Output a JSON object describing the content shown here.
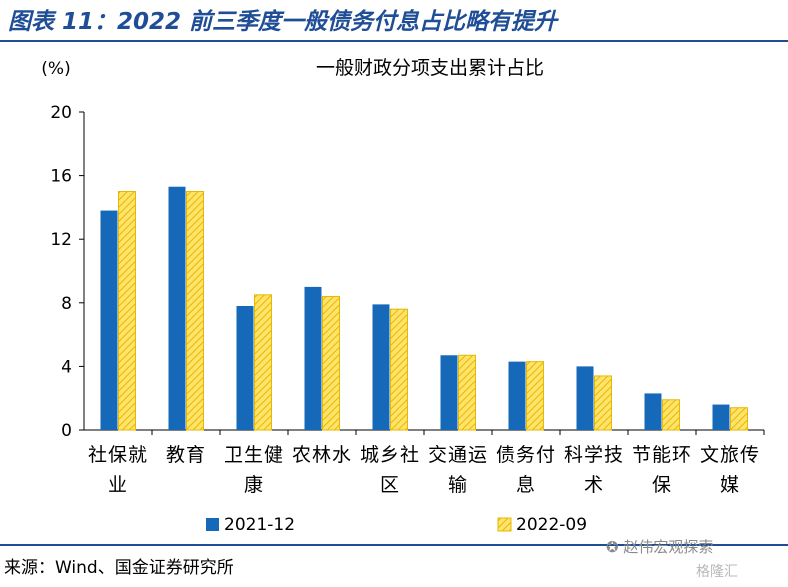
{
  "figure_title": "图表 11：2022 前三季度一般债务付息占比略有提升",
  "source_note": "来源：Wind、国金证券研究所",
  "watermark": "赵伟宏观探索",
  "watermark_brand": "格隆汇",
  "colors": {
    "accent": "#1f4e96",
    "series_2021": "#1668b8",
    "series_2022_fill": "#ffe36b",
    "series_2022_stroke": "#e6b800"
  },
  "chart_data": {
    "type": "bar",
    "title": "一般财政分项支出累计占比",
    "ylabel": "(%)",
    "ylim": [
      0,
      20
    ],
    "yticks": [
      "0",
      "4",
      "8",
      "12",
      "16",
      "20"
    ],
    "grid": false,
    "legend_position": "bottom",
    "categories": [
      [
        "社保就",
        "业"
      ],
      [
        "教育"
      ],
      [
        "卫生健",
        "康"
      ],
      [
        "农林水"
      ],
      [
        "城乡社",
        "区"
      ],
      [
        "交通运",
        "输"
      ],
      [
        "债务付",
        "息"
      ],
      [
        "科学技",
        "术"
      ],
      [
        "节能环",
        "保"
      ],
      [
        "文旅传",
        "媒"
      ]
    ],
    "series": [
      {
        "name": "2021-12",
        "values": [
          13.8,
          15.3,
          7.8,
          9.0,
          7.9,
          4.7,
          4.3,
          4.0,
          2.3,
          1.6
        ]
      },
      {
        "name": "2022-09",
        "values": [
          15.0,
          15.0,
          8.5,
          8.4,
          7.6,
          4.7,
          4.3,
          3.4,
          1.9,
          1.4
        ]
      }
    ]
  }
}
